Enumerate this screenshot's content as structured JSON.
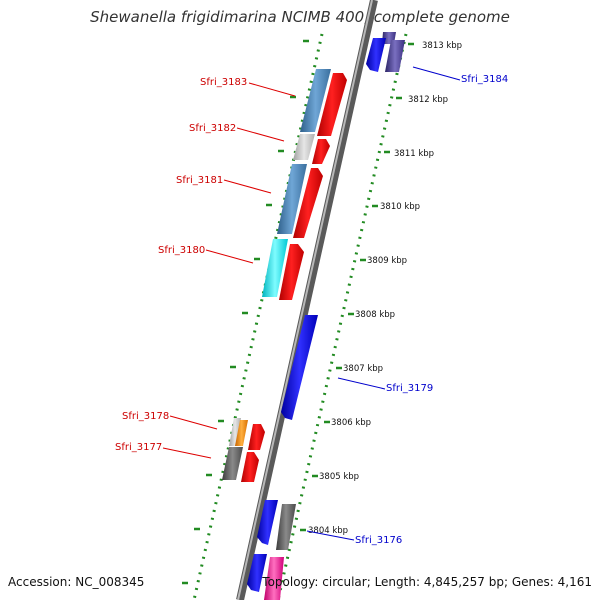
{
  "title": "Shewanella frigidimarina NCIMB 400, complete genome",
  "footer": {
    "accession_label": "Accession:",
    "accession": "NC_008345",
    "topology_label": "Topology:",
    "topology": "circular",
    "length_label": "Length:",
    "length": "4,845,257 bp",
    "genes_label": "Genes:",
    "genes": "4,161"
  },
  "ticks": [
    "3813 kbp",
    "3812 kbp",
    "3811 kbp",
    "3810 kbp",
    "3809 kbp",
    "3808 kbp",
    "3807 kbp",
    "3806 kbp",
    "3805 kbp",
    "3804 kbp"
  ],
  "genes_left": [
    "Sfri_3183",
    "Sfri_3182",
    "Sfri_3181",
    "Sfri_3180",
    "Sfri_3178",
    "Sfri_3177"
  ],
  "genes_right": [
    "Sfri_3184",
    "Sfri_3179",
    "Sfri_3176"
  ],
  "colors": {
    "red": "#ff0000",
    "blue": "#1010e8",
    "steelblue": "#4682b4",
    "cyan": "#00e5ee",
    "gray": "#666666",
    "lightgray": "#c8c8c8",
    "orange": "#ff8c00",
    "navy": "#483d8b",
    "pink": "#ff1493",
    "tick_green": "#228b22",
    "backbone": "#808080"
  }
}
